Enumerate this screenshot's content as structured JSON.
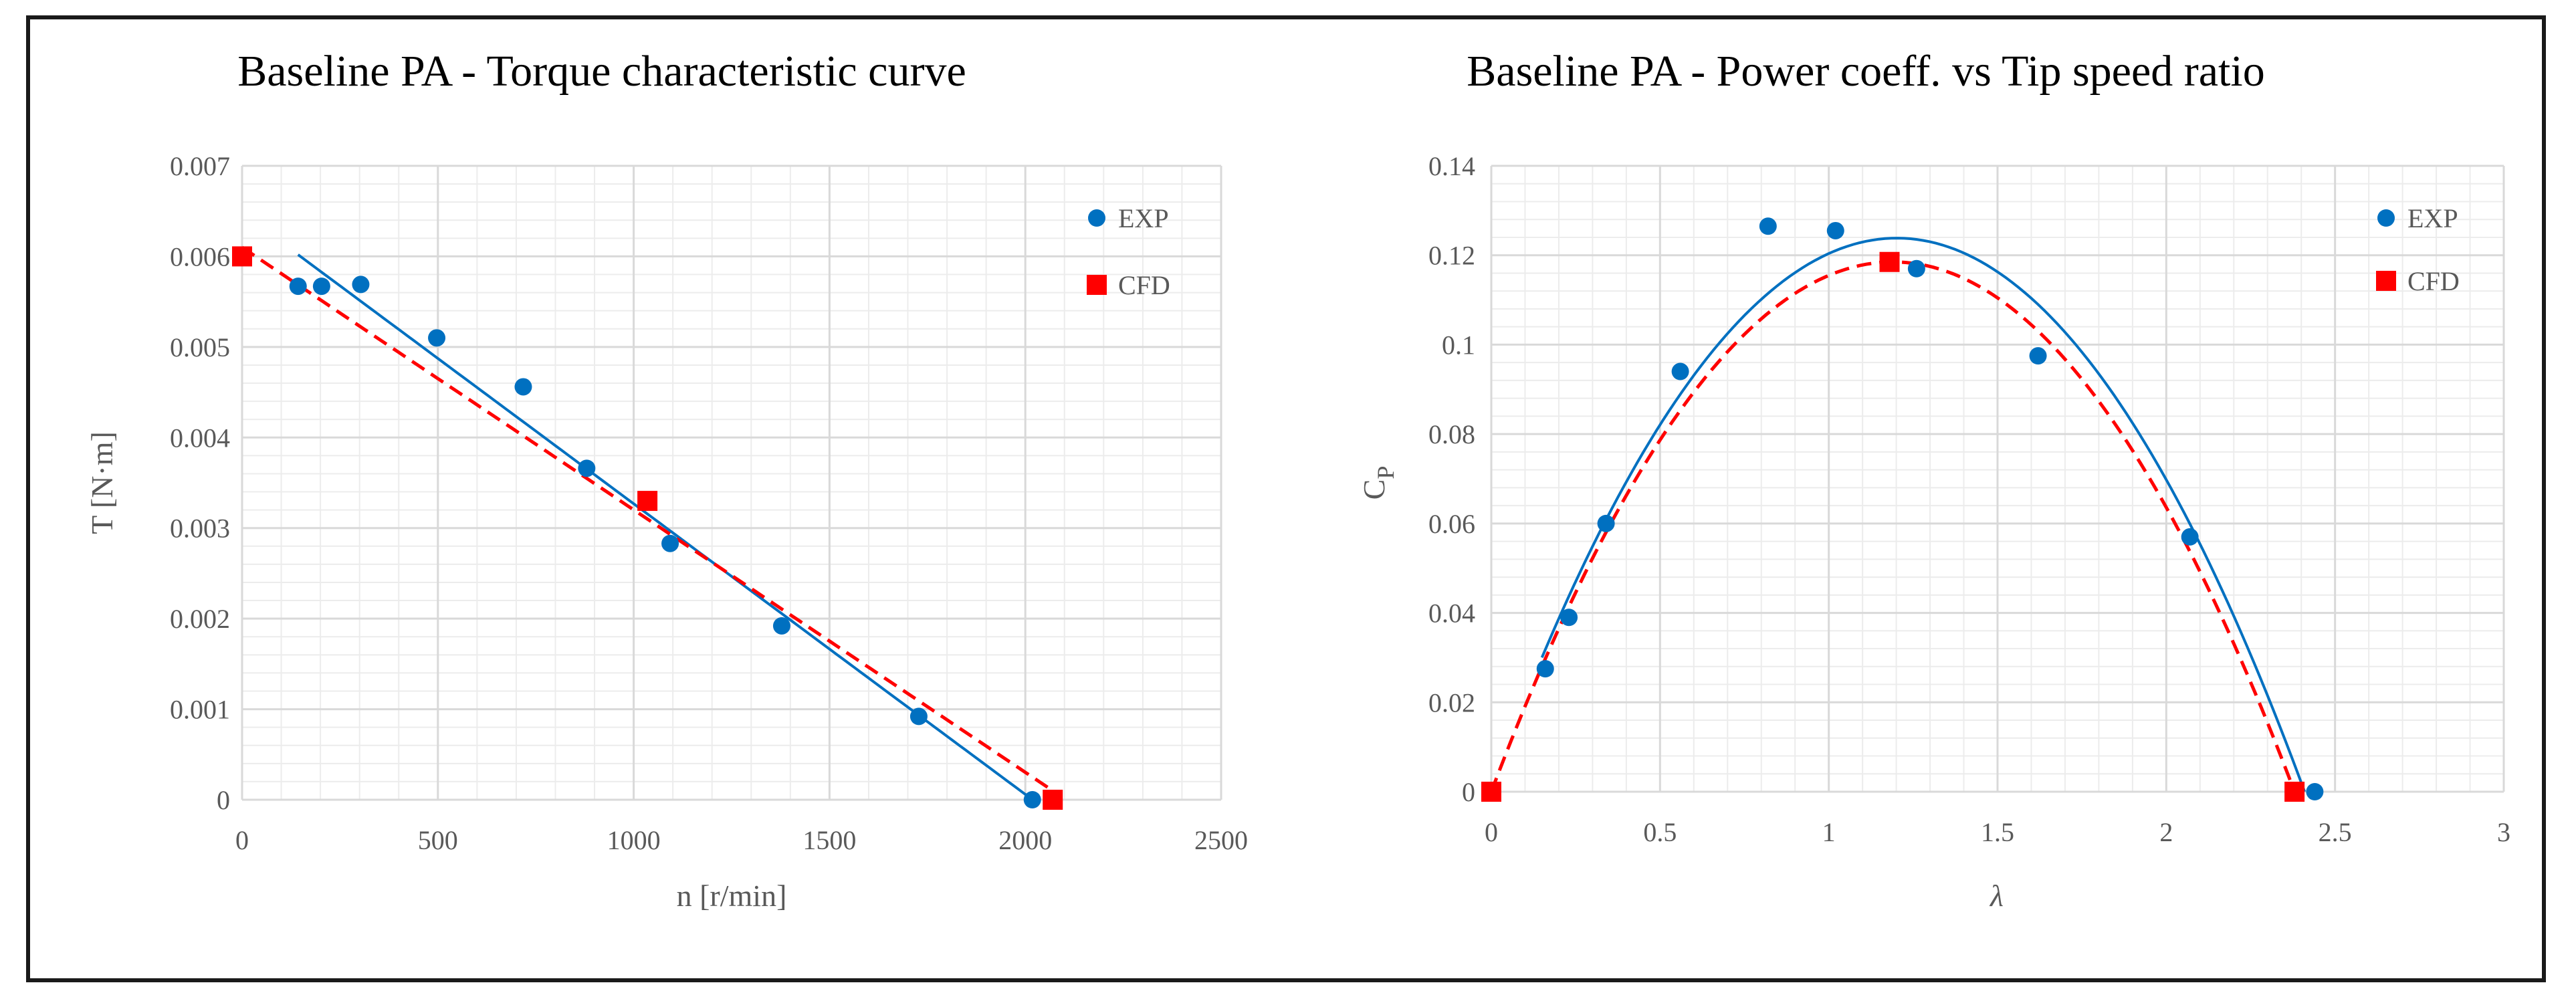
{
  "colors": {
    "exp": "#0070c0",
    "cfd": "#ff0000"
  },
  "chart_data": [
    {
      "type": "scatter",
      "title": "Baseline PA - Torque characteristic curve",
      "xlabel": "n [r/min]",
      "ylabel": "T [N·m]",
      "xlim": [
        0,
        2500
      ],
      "ylim": [
        0,
        0.007
      ],
      "xticks": [
        0,
        500,
        1000,
        1500,
        2000,
        2500
      ],
      "yticks": [
        0,
        0.001,
        0.002,
        0.003,
        0.004,
        0.005,
        0.006,
        0.007
      ],
      "xtick_labels": [
        "0",
        "500",
        "1000",
        "1500",
        "2000",
        "2500"
      ],
      "ytick_labels": [
        "0",
        "0.001",
        "0.002",
        "0.003",
        "0.004",
        "0.005",
        "0.006",
        "0.007"
      ],
      "grid": true,
      "legend_position": "top-right",
      "series": [
        {
          "name": "EXP",
          "marker": "circle",
          "x": [
            143,
            203,
            303,
            497,
            718,
            880,
            1093,
            1378,
            1728,
            2018
          ],
          "y": [
            0.00567,
            0.00567,
            0.00569,
            0.0051,
            0.00456,
            0.00366,
            0.00283,
            0.00192,
            0.00092,
            0.0
          ],
          "trendline": {
            "type": "linear",
            "x_range": [
              143,
              2018
            ]
          }
        },
        {
          "name": "CFD",
          "marker": "square",
          "x": [
            0,
            1035,
            2070
          ],
          "y": [
            0.006,
            0.0033,
            0.0
          ],
          "trendline": {
            "type": "linear",
            "x_range": [
              0,
              2070
            ],
            "dashed": true
          }
        }
      ]
    },
    {
      "type": "scatter",
      "title": "Baseline PA - Power coeff. vs Tip speed ratio",
      "xlabel": "λ",
      "ylabel": "C",
      "ylabel_subscript": "P",
      "xlim": [
        0,
        3
      ],
      "ylim": [
        0,
        0.14
      ],
      "xticks": [
        0,
        0.5,
        1,
        1.5,
        2,
        2.5,
        3
      ],
      "yticks": [
        0,
        0.02,
        0.04,
        0.06,
        0.08,
        0.1,
        0.12,
        0.14
      ],
      "xtick_labels": [
        "0",
        "0.5",
        "1",
        "1.5",
        "2",
        "2.5",
        "3"
      ],
      "ytick_labels": [
        "0",
        "0.02",
        "0.04",
        "0.06",
        "0.08",
        "0.1",
        "0.12",
        "0.14"
      ],
      "grid": true,
      "legend_position": "top-right",
      "series": [
        {
          "name": "EXP",
          "marker": "circle",
          "x": [
            0.16,
            0.23,
            0.34,
            0.56,
            0.82,
            1.02,
            1.26,
            1.62,
            2.07,
            2.44
          ],
          "y": [
            0.0275,
            0.039,
            0.06,
            0.094,
            0.1265,
            0.1255,
            0.117,
            0.0975,
            0.057,
            0.0
          ],
          "trendline": {
            "type": "polynomial",
            "x_range": [
              0.15,
              2.41
            ]
          }
        },
        {
          "name": "CFD",
          "marker": "square",
          "x": [
            0,
            1.18,
            2.38
          ],
          "y": [
            0.0,
            0.1185,
            0.0
          ],
          "trendline": {
            "type": "polynomial",
            "x_range": [
              0,
              2.38
            ],
            "dashed": true
          }
        }
      ]
    }
  ]
}
